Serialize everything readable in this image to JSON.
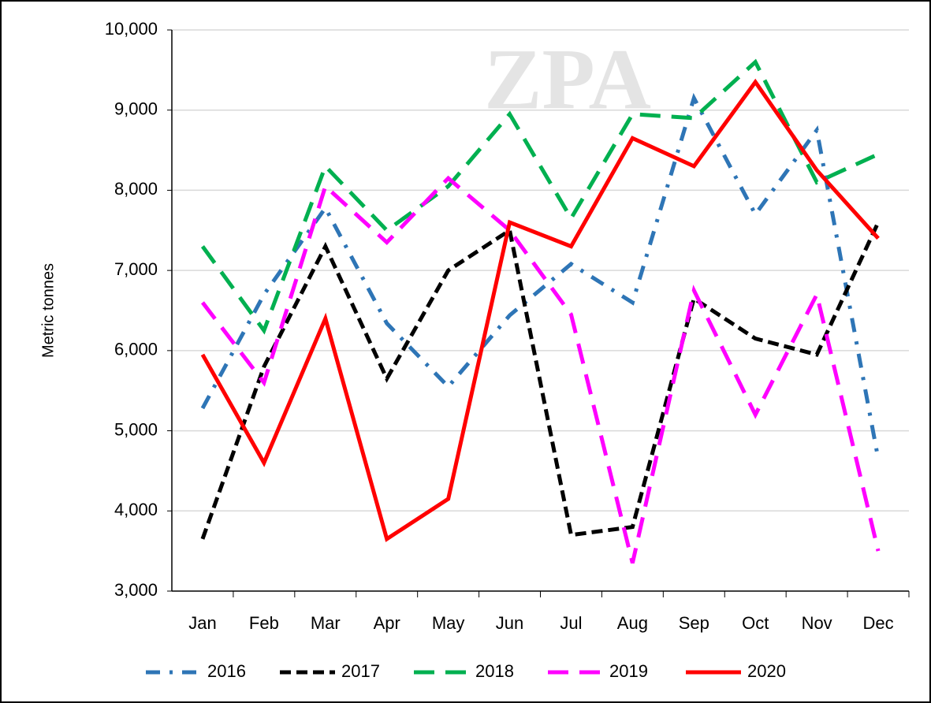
{
  "chart_data": {
    "type": "line",
    "watermark": "ZPA",
    "y_label": "Metric tonnes",
    "categories": [
      "Jan",
      "Feb",
      "Mar",
      "Apr",
      "May",
      "Jun",
      "Jul",
      "Aug",
      "Sep",
      "Oct",
      "Nov",
      "Dec"
    ],
    "series": [
      {
        "name": "2016",
        "color": "#2e75b6",
        "dash": "dash-dot",
        "values": [
          5280,
          6700,
          7780,
          6340,
          5550,
          6440,
          7080,
          6600,
          9150,
          7700,
          8750,
          4650
        ]
      },
      {
        "name": "2017",
        "color": "#000000",
        "dash": "dash",
        "values": [
          3650,
          5800,
          7300,
          5650,
          7000,
          7500,
          3700,
          3800,
          6650,
          6150,
          5950,
          7600
        ]
      },
      {
        "name": "2018",
        "color": "#00b050",
        "dash": "long-dash",
        "values": [
          7300,
          6250,
          8300,
          7500,
          8050,
          8950,
          7650,
          8950,
          8900,
          9600,
          8100,
          8450
        ]
      },
      {
        "name": "2019",
        "color": "#ff00ff",
        "dash": "long-dash",
        "values": [
          6600,
          5600,
          8050,
          7350,
          8150,
          7500,
          6450,
          3350,
          6750,
          5200,
          6700,
          3500
        ]
      },
      {
        "name": "2020",
        "color": "#ff0000",
        "dash": "solid",
        "values": [
          5950,
          4600,
          6400,
          3650,
          4150,
          7600,
          7300,
          8650,
          8300,
          9350,
          8250,
          7400
        ]
      }
    ],
    "ylim": [
      3000,
      10000
    ],
    "yticks": [
      {
        "value": 3000,
        "label": "3,000"
      },
      {
        "value": 4000,
        "label": "4,000"
      },
      {
        "value": 5000,
        "label": "5,000"
      },
      {
        "value": 6000,
        "label": "6,000"
      },
      {
        "value": 7000,
        "label": "7,000"
      },
      {
        "value": 8000,
        "label": "8,000"
      },
      {
        "value": 9000,
        "label": "9,000"
      },
      {
        "value": 10000,
        "label": "10,000"
      }
    ],
    "grid": true,
    "legend": "bottom"
  }
}
